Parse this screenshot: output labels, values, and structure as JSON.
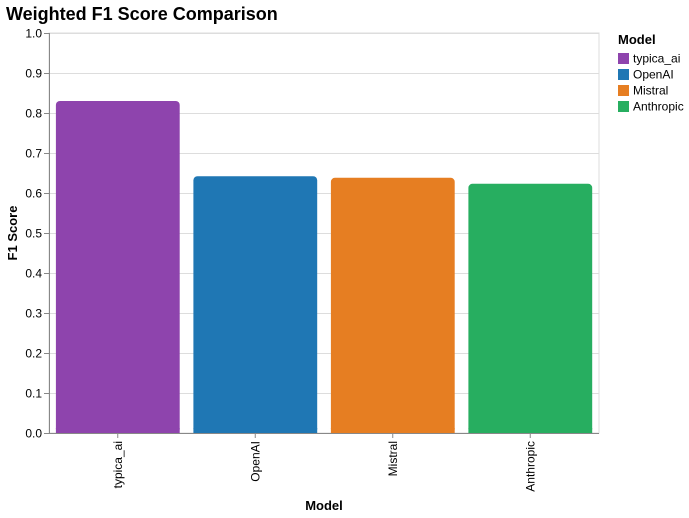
{
  "chart_data": {
    "type": "bar",
    "title": "Weighted F1 Score Comparison",
    "xlabel": "Model",
    "ylabel": "F1 Score",
    "categories": [
      "typica_ai",
      "OpenAI",
      "Mistral",
      "Anthropic"
    ],
    "values": [
      0.83,
      0.642,
      0.638,
      0.623
    ],
    "colors": [
      "#8e44ad",
      "#1f77b4",
      "#e67e22",
      "#27ae60"
    ],
    "ylim": [
      0,
      1.0
    ],
    "yticks": [
      "0.0",
      "0.1",
      "0.2",
      "0.3",
      "0.4",
      "0.5",
      "0.6",
      "0.7",
      "0.8",
      "0.9",
      "1.0"
    ],
    "grid": true,
    "legend": {
      "title": "Model",
      "placement": "right",
      "entries": [
        "typica_ai",
        "OpenAI",
        "Mistral",
        "Anthropic"
      ]
    }
  }
}
